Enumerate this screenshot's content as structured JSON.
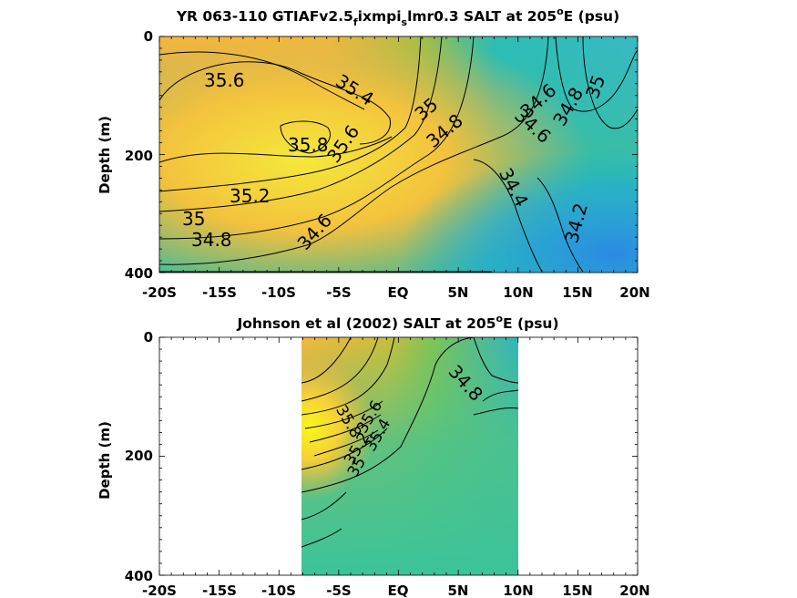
{
  "chart_data": [
    {
      "type": "contour",
      "title": "YR 063-110 GTIAFv2.5",
      "title_sub1": "f",
      "title_mid": "ixmpi",
      "title_sub2": "s",
      "title_tail": "lmr0.3 SALT at 205",
      "title_sup": "o",
      "title_end": "E (psu)",
      "ylabel": "Depth (m)",
      "xlim": [
        -20,
        20
      ],
      "ylim": [
        0,
        400
      ],
      "x_ticks": [
        -20,
        -15,
        -10,
        -5,
        0,
        5,
        10,
        15,
        20
      ],
      "x_tick_labels": [
        "-20S",
        "-15S",
        "-10S",
        "-5S",
        "EQ",
        "5N",
        "10N",
        "15N",
        "20N"
      ],
      "y_ticks": [
        0,
        200,
        400
      ],
      "y_tick_labels": [
        "0",
        "200",
        "400"
      ],
      "contour_labels": [
        {
          "text": "35.6",
          "x": -16.9,
          "y": 72
        },
        {
          "text": "35.4",
          "x": -5.8,
          "y": 108
        },
        {
          "text": "35.8",
          "x": -9.0,
          "y": 178
        },
        {
          "text": "35.6",
          "x": -5.3,
          "y": 168
        },
        {
          "text": "35",
          "x": 2.5,
          "y": 125
        },
        {
          "text": "34.8",
          "x": 3.9,
          "y": 153
        },
        {
          "text": "34.6",
          "x": 11.7,
          "y": 96
        },
        {
          "text": "34.8",
          "x": 14.5,
          "y": 108
        },
        {
          "text": "35",
          "x": 16.5,
          "y": 82
        },
        {
          "text": "34.6",
          "x": 10.5,
          "y": 170
        },
        {
          "text": "35.2",
          "x": -12.2,
          "y": 272
        },
        {
          "text": "35",
          "x": -17.2,
          "y": 305
        },
        {
          "text": "34.8",
          "x": -15.8,
          "y": 342
        },
        {
          "text": "34.6",
          "x": -6.6,
          "y": 340
        },
        {
          "text": "34.4",
          "x": 8.7,
          "y": 275
        },
        {
          "text": "34.2",
          "x": 15.2,
          "y": 322
        }
      ],
      "colormap": "parula",
      "fill_range_psu": [
        34.1,
        35.9
      ]
    },
    {
      "type": "contour",
      "title": "Johnson et al (2002) SALT at 205",
      "title_sup": "o",
      "title_end": "E (psu)",
      "ylabel": "Depth (m)",
      "xlim": [
        -20,
        20
      ],
      "ylim": [
        0,
        400
      ],
      "data_xlim": [
        -8,
        10
      ],
      "x_ticks": [
        -20,
        -15,
        -10,
        -5,
        0,
        5,
        10,
        15,
        20
      ],
      "x_tick_labels": [
        "-20S",
        "-15S",
        "-10S",
        "-5S",
        "EQ",
        "5N",
        "10N",
        "15N",
        "20N"
      ],
      "y_ticks": [
        0,
        200,
        400
      ],
      "y_tick_labels": [
        "0",
        "200",
        "400"
      ],
      "contour_labels": [
        {
          "text": "34.8",
          "x": 5.0,
          "y": 108
        },
        {
          "text": "35.6",
          "x": -4.0,
          "y": 162
        },
        {
          "text": "35.8",
          "x": -5.6,
          "y": 140
        },
        {
          "text": "35.4",
          "x": -3.0,
          "y": 180
        },
        {
          "text": "35.2",
          "x": -4.5,
          "y": 205
        },
        {
          "text": "35",
          "x": -4.0,
          "y": 238
        }
      ],
      "colormap": "parula"
    }
  ]
}
